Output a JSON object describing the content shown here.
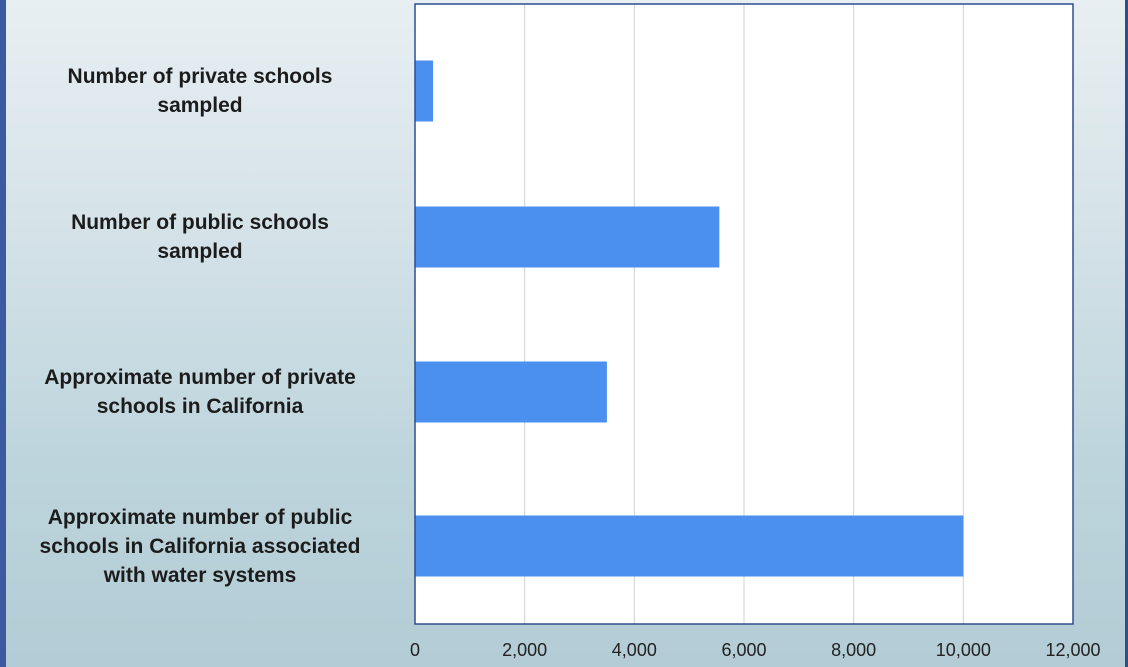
{
  "chart_data": {
    "type": "bar",
    "orientation": "horizontal",
    "categories": [
      "Number of private schools sampled",
      "Number of public schools sampled",
      "Approximate number of private schools in California",
      "Approximate number of public schools in California associated with water systems"
    ],
    "category_lines": [
      [
        "Number of private schools",
        "sampled"
      ],
      [
        "Number of public schools",
        "sampled"
      ],
      [
        "Approximate number of private",
        "schools in California"
      ],
      [
        "Approximate number of public",
        "schools in California associated",
        "with water systems"
      ]
    ],
    "values": [
      330,
      5550,
      3500,
      10000
    ],
    "xlim": [
      0,
      12000
    ],
    "x_ticks": [
      "0",
      "2,000",
      "4,000",
      "6,000",
      "8,000",
      "10,000",
      "12,000"
    ],
    "x_tick_values": [
      0,
      2000,
      4000,
      6000,
      8000,
      10000,
      12000
    ],
    "grid": "vertical",
    "title": "",
    "xlabel": "",
    "ylabel": "",
    "colors": {
      "bar": "#4b8fef",
      "frame": "#2f4e8f",
      "grid": "#d0d0d0",
      "plot_bg": "#ffffff"
    }
  }
}
